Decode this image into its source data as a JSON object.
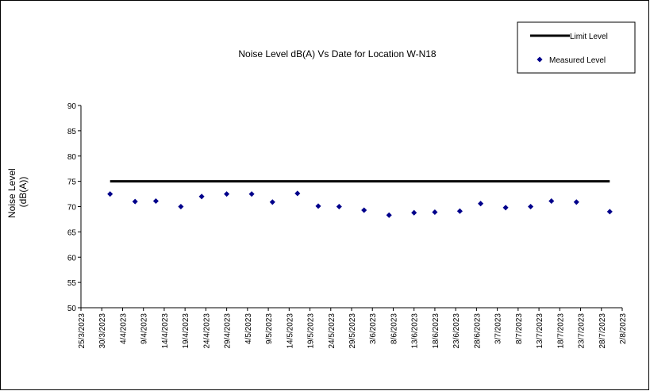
{
  "chart_data": {
    "type": "scatter",
    "title": "Noise Level dB(A) Vs Date for Location W-N18",
    "ylabel_lines": [
      "Noise Level",
      "(dB(A))"
    ],
    "xlabel": "",
    "ylim": [
      50,
      90
    ],
    "y_ticks": [
      50,
      55,
      60,
      65,
      70,
      75,
      80,
      85,
      90
    ],
    "xlim": [
      "2023-03-25",
      "2023-08-02"
    ],
    "x_tick_labels": [
      "25/3/2023",
      "30/3/2023",
      "4/4/2023",
      "9/4/2023",
      "14/4/2023",
      "19/4/2023",
      "24/4/2023",
      "29/4/2023",
      "4/5/2023",
      "9/5/2023",
      "14/5/2023",
      "19/5/2023",
      "24/5/2023",
      "29/5/2023",
      "3/6/2023",
      "8/6/2023",
      "13/6/2023",
      "18/6/2023",
      "23/6/2023",
      "28/6/2023",
      "3/7/2023",
      "8/7/2023",
      "13/7/2023",
      "18/7/2023",
      "23/7/2023",
      "28/7/2023",
      "2/8/2023"
    ],
    "legend_position": "top-right",
    "series": [
      {
        "name": "Limit Level",
        "kind": "line",
        "color": "#000000",
        "x": [
          "2023-04-01",
          "2023-07-30"
        ],
        "y": [
          75,
          75
        ]
      },
      {
        "name": "Measured Level",
        "kind": "scatter",
        "color": "#00008B",
        "x": [
          "2023-04-01",
          "2023-04-07",
          "2023-04-12",
          "2023-04-18",
          "2023-04-23",
          "2023-04-29",
          "2023-05-05",
          "2023-05-10",
          "2023-05-16",
          "2023-05-21",
          "2023-05-26",
          "2023-06-01",
          "2023-06-07",
          "2023-06-13",
          "2023-06-18",
          "2023-06-24",
          "2023-06-29",
          "2023-07-05",
          "2023-07-11",
          "2023-07-16",
          "2023-07-22",
          "2023-07-30"
        ],
        "y": [
          72.5,
          71.0,
          71.1,
          70.0,
          72.0,
          72.5,
          72.5,
          70.9,
          72.6,
          70.1,
          70.0,
          69.3,
          68.3,
          68.8,
          68.9,
          69.1,
          70.6,
          69.8,
          70.0,
          71.1,
          70.9,
          69.0
        ]
      }
    ]
  }
}
